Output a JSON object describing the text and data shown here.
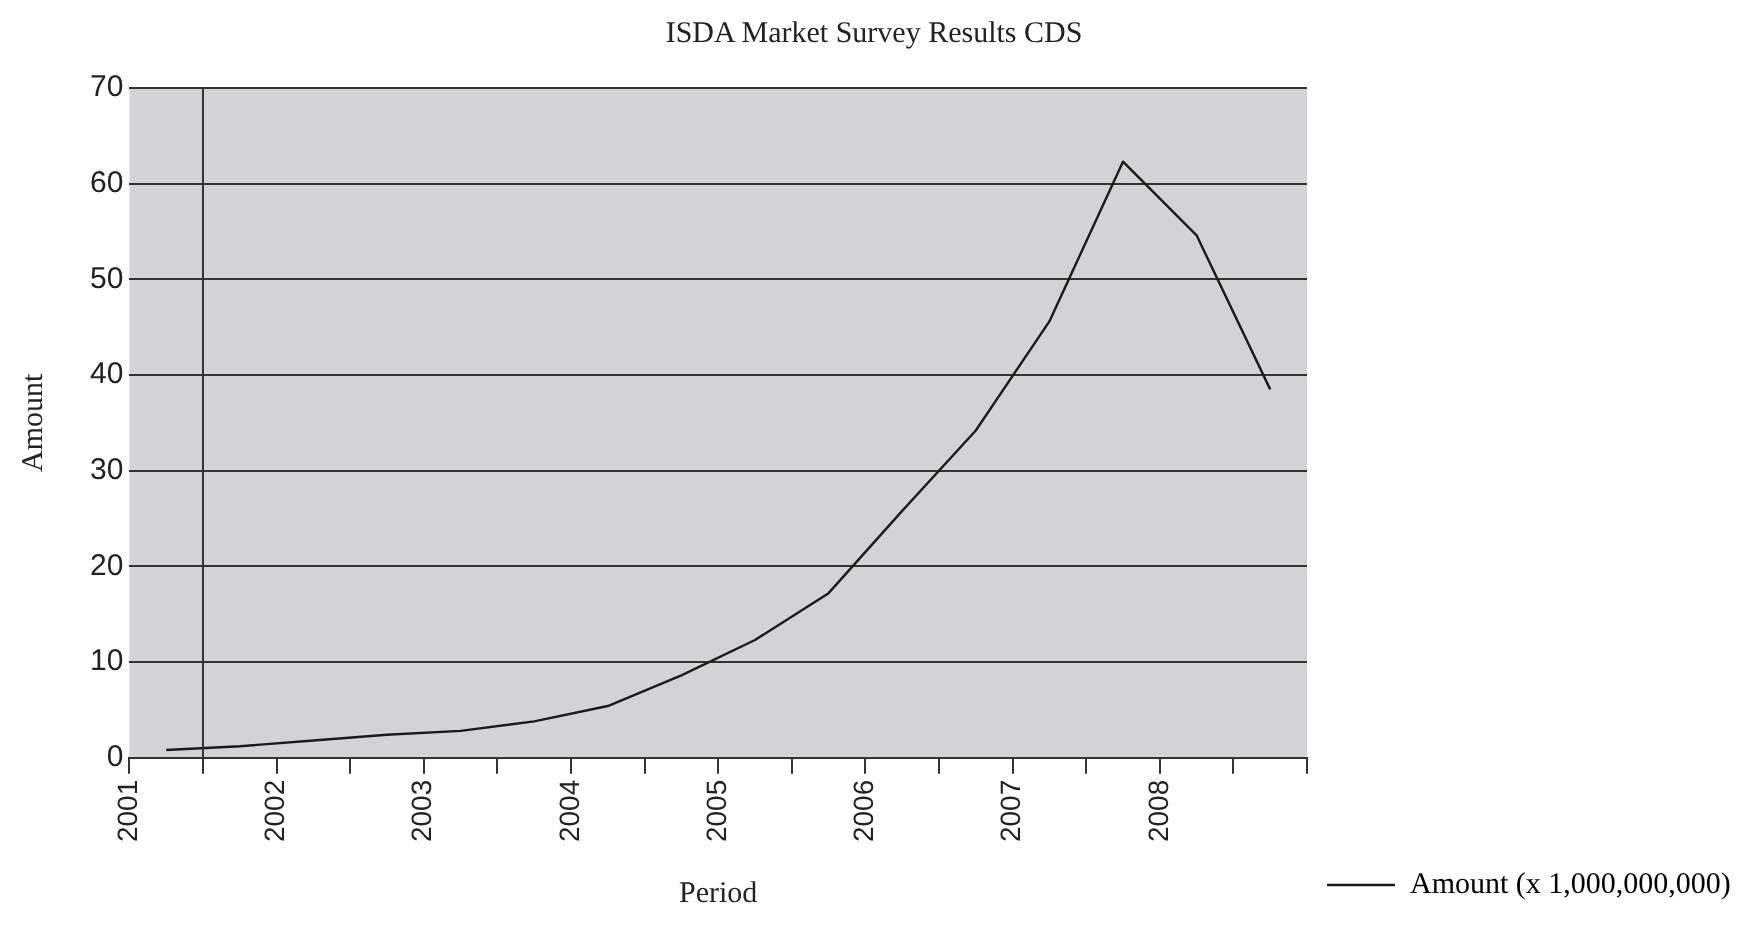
{
  "chart_data": {
    "type": "line",
    "title": "ISDA Market Survey Results CDS",
    "xlabel": "Period",
    "ylabel": "Amount",
    "x": [
      2001.25,
      2001.75,
      2002.25,
      2002.75,
      2003.25,
      2003.75,
      2004.25,
      2004.75,
      2005.25,
      2005.75,
      2006.25,
      2006.75,
      2007.25,
      2007.75,
      2008.25,
      2008.75
    ],
    "series": [
      {
        "name": "Amount (x 1,000,000,000)",
        "color": "#1a1a1a",
        "values": [
          0.8,
          1.2,
          1.8,
          2.4,
          2.8,
          3.8,
          5.4,
          8.6,
          12.3,
          17.2,
          25.8,
          34.2,
          45.6,
          62.3,
          54.6,
          38.5
        ]
      }
    ],
    "xlim": [
      2001,
      2009
    ],
    "xticks": [
      2001,
      {
        "value": 2001.5,
        "label": null
      },
      2002,
      {
        "value": 2002.5,
        "label": null
      },
      2003,
      {
        "value": 2003.5,
        "label": null
      },
      2004,
      {
        "value": 2004.5,
        "label": null
      },
      2005,
      {
        "value": 2005.5,
        "label": null
      },
      2006,
      {
        "value": 2006.5,
        "label": null
      },
      2007,
      {
        "value": 2007.5,
        "label": null
      },
      2008,
      {
        "value": 2008.5,
        "label": null
      },
      {
        "value": 2009,
        "label": null
      }
    ],
    "ylim": [
      0,
      70
    ],
    "yticks": [
      0,
      10,
      20,
      30,
      40,
      50,
      60,
      70
    ],
    "ref_lines": [
      {
        "axis": "x",
        "value": 2001.5,
        "label": null,
        "color": "#333333"
      }
    ],
    "grid": "y",
    "legend": "right",
    "marker": "none",
    "line_style": "solid"
  }
}
